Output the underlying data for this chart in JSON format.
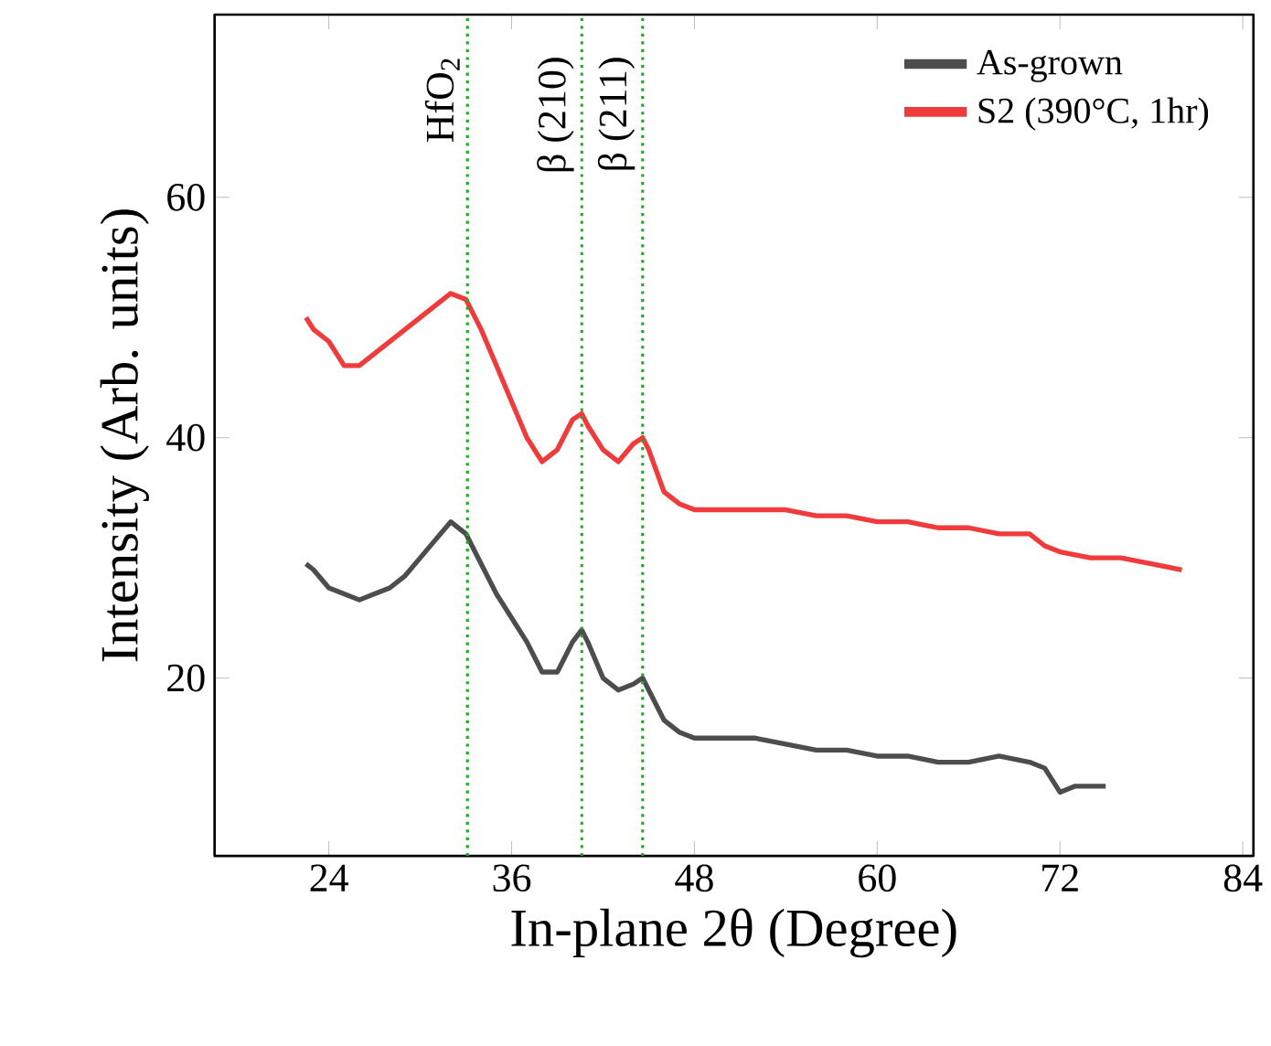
{
  "chart_data": {
    "type": "line",
    "xlabel": "In-plane 2θ (Degree)",
    "ylabel": "Intensity (Arb. units)",
    "xlim": [
      16.5,
      84.7
    ],
    "ylim": [
      5.2,
      75.2
    ],
    "xticks": [
      24,
      36,
      48,
      60,
      72,
      84
    ],
    "yticks": [
      20,
      40,
      60
    ],
    "legend": "top right",
    "grid": false,
    "line_style": "solid",
    "series": [
      {
        "name": "As-grown",
        "color": "#4d4d4d",
        "x": [
          22.5,
          23,
          24,
          25,
          26,
          27,
          28,
          29,
          30,
          31,
          32,
          33,
          34,
          35,
          36,
          37,
          38,
          39,
          40,
          40.6,
          41,
          42,
          43,
          44,
          44.6,
          45,
          46,
          47,
          48,
          50,
          52,
          54,
          56,
          58,
          60,
          62,
          64,
          66,
          68,
          70,
          71,
          72,
          73,
          74,
          75
        ],
        "values": [
          29.5,
          29,
          27.5,
          27,
          26.5,
          27,
          27.5,
          28.5,
          30,
          31.5,
          33,
          32,
          29.5,
          27,
          25,
          23,
          20.5,
          20.5,
          23,
          24,
          23,
          20,
          19,
          19.5,
          20,
          19,
          16.5,
          15.5,
          15,
          15,
          15,
          14.5,
          14,
          14,
          13.5,
          13.5,
          13,
          13,
          13.5,
          13,
          12.5,
          10.5,
          11,
          11,
          11
        ]
      },
      {
        "name": "S2 (390°C, 1hr)",
        "color": "#ef3b3b",
        "x": [
          22.5,
          23,
          24,
          25,
          26,
          27,
          28,
          29,
          30,
          31,
          32,
          33,
          34,
          35,
          36,
          37,
          38,
          39,
          40,
          40.6,
          41,
          42,
          43,
          44,
          44.6,
          45,
          46,
          47,
          48,
          50,
          52,
          54,
          56,
          58,
          60,
          62,
          64,
          66,
          68,
          70,
          71,
          72,
          74,
          76,
          78,
          80
        ],
        "values": [
          50,
          49,
          48,
          46,
          46,
          47,
          48,
          49,
          50,
          51,
          52,
          51.5,
          49,
          46,
          43,
          40,
          38,
          39,
          41.5,
          42,
          41,
          39,
          38,
          39.5,
          40,
          39,
          35.5,
          34.5,
          34,
          34,
          34,
          34,
          33.5,
          33.5,
          33,
          33,
          32.5,
          32.5,
          32,
          32,
          31,
          30.5,
          30,
          30,
          29.5,
          29
        ]
      }
    ],
    "ref_lines": [
      {
        "axis": "x",
        "value": 33.1,
        "label": "HfO$_{2}$",
        "color": "#22aa22",
        "line_style": "dotted"
      },
      {
        "axis": "x",
        "value": 40.6,
        "label": "β (210)",
        "color": "#22aa22",
        "line_style": "dotted"
      },
      {
        "axis": "x",
        "value": 44.6,
        "label": "β (211)",
        "color": "#22aa22",
        "line_style": "dotted"
      }
    ]
  }
}
